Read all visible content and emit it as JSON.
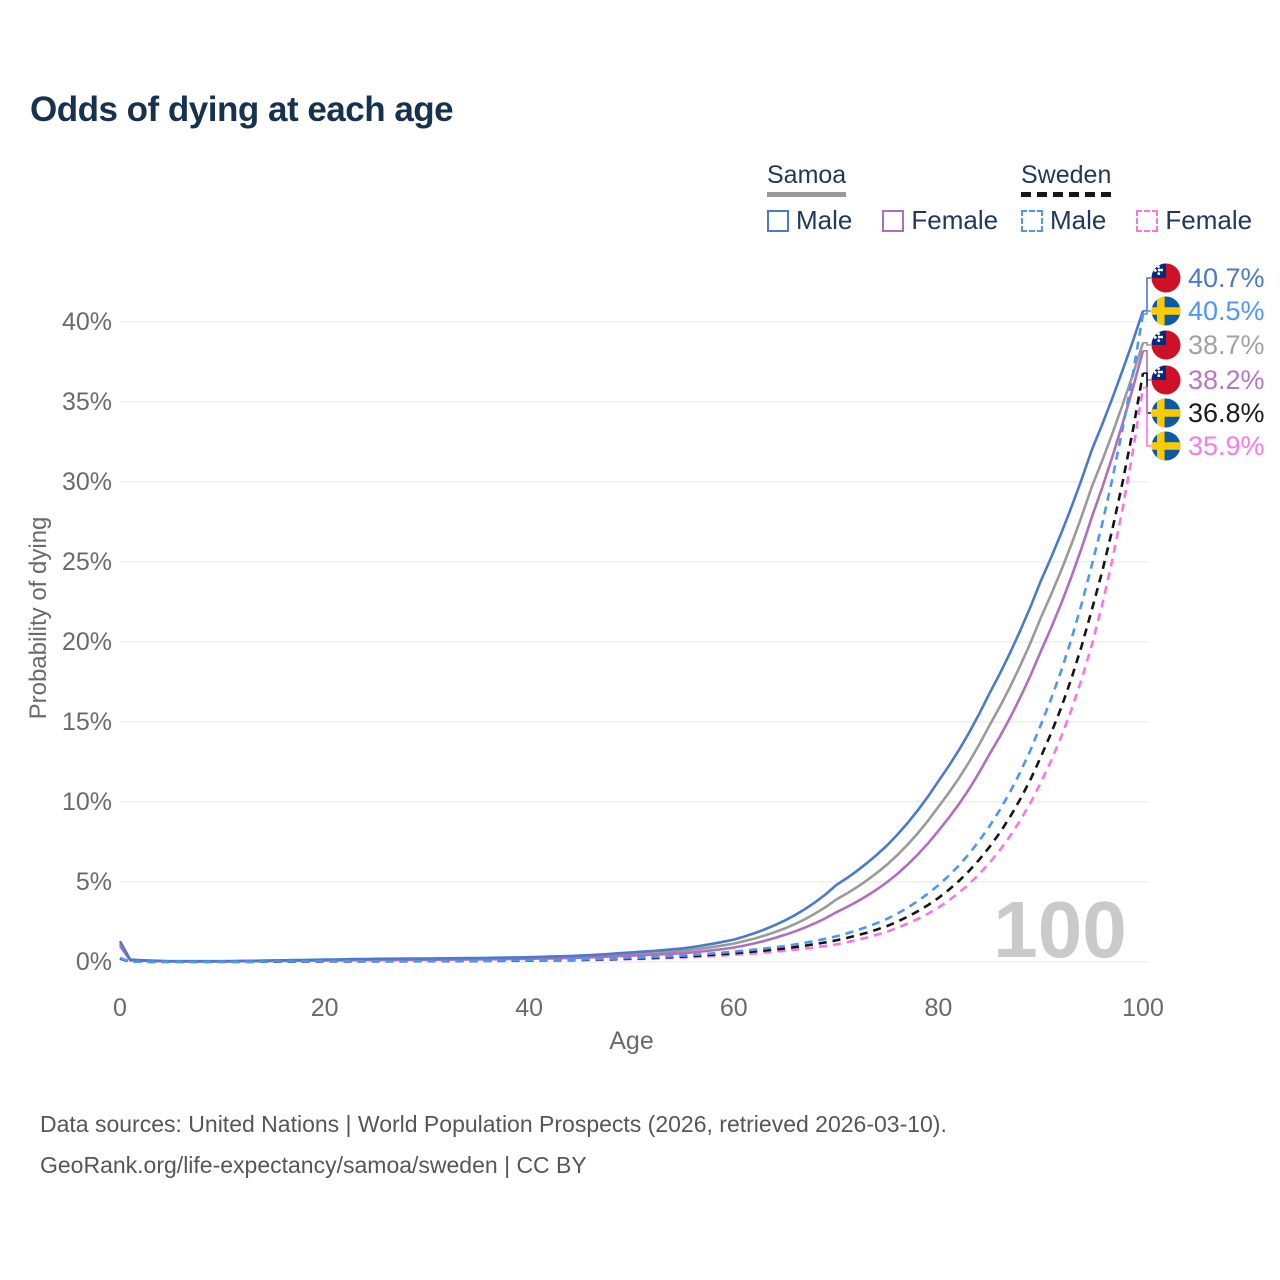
{
  "title": "Odds of dying at each age",
  "legend": {
    "groups": [
      {
        "name": "Samoa",
        "line_style": "solid",
        "underline_color": "#9a9a9a",
        "items": [
          {
            "label": "Male",
            "color": "#4A7AC8",
            "line_style": "solid"
          },
          {
            "label": "Female",
            "color": "#B06FBC",
            "line_style": "solid"
          }
        ]
      },
      {
        "name": "Sweden",
        "line_style": "dashed",
        "underline_color": "#151515",
        "items": [
          {
            "label": "Male",
            "color": "#4D97F2",
            "line_style": "dashed"
          },
          {
            "label": "Female",
            "color": "#FB74E4",
            "line_style": "dashed"
          }
        ]
      }
    ]
  },
  "chart_data": {
    "type": "line",
    "xlabel": "Age",
    "ylabel": "Probability of dying",
    "xticks": [
      0,
      20,
      40,
      60,
      80,
      100
    ],
    "ytick_labels": [
      "0%",
      "5%",
      "10%",
      "15%",
      "20%",
      "25%",
      "30%",
      "35%",
      "40%"
    ],
    "ytick_values": [
      0,
      5,
      10,
      15,
      20,
      25,
      30,
      35,
      40
    ],
    "xlim": [
      0,
      100
    ],
    "ylim": [
      0,
      43
    ],
    "grid": "horizontal",
    "watermark": "100",
    "x": [
      0,
      1,
      5,
      10,
      15,
      20,
      25,
      30,
      35,
      40,
      45,
      50,
      55,
      60,
      65,
      70,
      75,
      80,
      85,
      90,
      95,
      100
    ],
    "series": [
      {
        "name": "Samoa Male",
        "country": "samoa",
        "sex": "male",
        "line_style": "solid",
        "color": "#4A7AC8",
        "label_color": "#4a7ac8",
        "end_label": "40.7%",
        "values": [
          1.3,
          0.15,
          0.05,
          0.05,
          0.1,
          0.15,
          0.2,
          0.22,
          0.25,
          0.3,
          0.4,
          0.6,
          0.85,
          1.4,
          2.6,
          4.8,
          7.3,
          11.3,
          16.8,
          23.8,
          32.0,
          40.7
        ]
      },
      {
        "name": "Sweden Male",
        "country": "sweden",
        "sex": "male",
        "line_style": "dashed",
        "color": "#4D97F2",
        "label_color": "#4d97f2",
        "end_label": "40.5%",
        "values": [
          0.25,
          0.02,
          0.01,
          0.01,
          0.03,
          0.05,
          0.06,
          0.07,
          0.08,
          0.1,
          0.15,
          0.25,
          0.4,
          0.65,
          1.0,
          1.6,
          2.7,
          4.8,
          8.5,
          14.8,
          24.8,
          40.5
        ]
      },
      {
        "name": "Samoa Both sexes",
        "country": "samoa",
        "sex": "both",
        "line_style": "solid",
        "color": "#9A9A9A",
        "label_color": "#a2a2a2",
        "end_label": "38.7%",
        "values": [
          1.15,
          0.12,
          0.04,
          0.04,
          0.08,
          0.12,
          0.16,
          0.18,
          0.2,
          0.25,
          0.33,
          0.5,
          0.7,
          1.15,
          2.1,
          3.9,
          6.1,
          9.7,
          14.8,
          21.5,
          29.7,
          38.7
        ]
      },
      {
        "name": "Samoa Female",
        "country": "samoa",
        "sex": "female",
        "line_style": "solid",
        "color": "#B06FBC",
        "label_color": "#b877c6",
        "end_label": "38.2%",
        "values": [
          1.0,
          0.1,
          0.04,
          0.04,
          0.06,
          0.1,
          0.12,
          0.14,
          0.16,
          0.2,
          0.27,
          0.4,
          0.55,
          0.9,
          1.7,
          3.1,
          5.0,
          8.2,
          13.0,
          19.4,
          27.8,
          38.2
        ]
      },
      {
        "name": "Sweden Both sexes",
        "country": "sweden",
        "sex": "both",
        "line_style": "dashed",
        "color": "#151515",
        "label_color": "#1a1a1a",
        "end_label": "36.8%",
        "values": [
          0.22,
          0.02,
          0.01,
          0.01,
          0.02,
          0.04,
          0.05,
          0.06,
          0.07,
          0.09,
          0.13,
          0.21,
          0.34,
          0.55,
          0.85,
          1.35,
          2.25,
          4.0,
          7.2,
          12.8,
          22.0,
          36.8
        ]
      },
      {
        "name": "Sweden Female",
        "country": "sweden",
        "sex": "female",
        "line_style": "dashed",
        "color": "#FB74E4",
        "label_color": "#fb7ae4",
        "end_label": "35.9%",
        "values": [
          0.2,
          0.02,
          0.01,
          0.01,
          0.02,
          0.03,
          0.04,
          0.05,
          0.06,
          0.08,
          0.11,
          0.18,
          0.28,
          0.45,
          0.7,
          1.1,
          1.9,
          3.4,
          6.2,
          11.2,
          19.8,
          35.9
        ]
      }
    ],
    "label_slots_y": [
      278,
      311,
      345,
      380,
      413,
      446
    ],
    "draw_order": [
      2,
      3,
      0,
      5,
      4,
      1
    ]
  },
  "footer": {
    "line1": "Data sources: United Nations | World Population Prospects (2026, retrieved 2026-03-10).",
    "line2": "GeoRank.org/life-expectancy/samoa/sweden | CC BY"
  },
  "colors": {
    "title": "#17324e",
    "axis_text": "#6a6a6a",
    "gridline": "#ededed",
    "watermark": "#cacaca",
    "footer_text": "#565656",
    "samoa_flag_red": "#CE1126",
    "samoa_flag_blue": "#002B7F",
    "sweden_flag_blue": "#0C5AA6",
    "sweden_flag_yellow": "#FDCA00"
  }
}
